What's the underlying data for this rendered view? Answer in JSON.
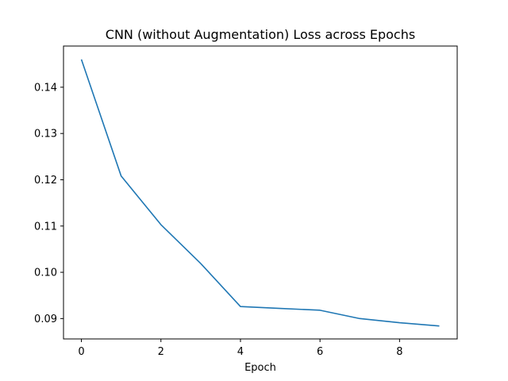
{
  "chart_data": {
    "type": "line",
    "title": "CNN (without Augmentation) Loss across Epochs",
    "xlabel": "Epoch",
    "ylabel": "",
    "x": [
      0,
      1,
      2,
      3,
      4,
      5,
      6,
      7,
      8,
      9
    ],
    "series": [
      {
        "values": [
          0.146,
          0.1208,
          0.1103,
          0.1019,
          0.0926,
          0.0922,
          0.0918,
          0.09,
          0.0891,
          0.0884
        ]
      }
    ],
    "xlim": [
      -0.45,
      9.45
    ],
    "ylim": [
      0.0856,
      0.1489
    ],
    "xticks": [
      0,
      2,
      4,
      6,
      8
    ],
    "xtick_labels": [
      "0",
      "2",
      "4",
      "6",
      "8"
    ],
    "yticks": [
      0.09,
      0.1,
      0.11,
      0.12,
      0.13,
      0.14
    ],
    "ytick_labels": [
      "0.09",
      "0.10",
      "0.11",
      "0.12",
      "0.13",
      "0.14"
    ],
    "grid": false,
    "line_color": "#1f77b4"
  }
}
